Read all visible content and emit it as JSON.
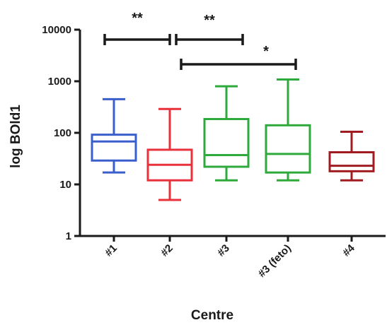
{
  "chart_data": {
    "type": "box",
    "xlabel": "Centre",
    "ylabel": "log BOld1",
    "yscale": "log",
    "ylim": [
      1,
      10000
    ],
    "yticks": [
      {
        "value": 1,
        "label": "1"
      },
      {
        "value": 10,
        "label": "10"
      },
      {
        "value": 100,
        "label": "100"
      },
      {
        "value": 1000,
        "label": "1000"
      },
      {
        "value": 10000,
        "label": "10000"
      }
    ],
    "categories": [
      "#1",
      "#2",
      "#3",
      "#3 (feto)",
      "#4"
    ],
    "boxes": [
      {
        "category": "#1",
        "min": 17,
        "q1": 29,
        "median": 68,
        "q3": 92,
        "max": 450,
        "color": "#3a5fcd"
      },
      {
        "category": "#2",
        "min": 5,
        "q1": 12,
        "median": 24,
        "q3": 47,
        "max": 290,
        "color": "#e8313a"
      },
      {
        "category": "#3",
        "min": 12,
        "q1": 22,
        "median": 37,
        "q3": 185,
        "max": 800,
        "color": "#2eaa3c"
      },
      {
        "category": "#3 (feto)",
        "min": 12,
        "q1": 17,
        "median": 39,
        "q3": 140,
        "max": 1080,
        "color": "#2eaa3c"
      },
      {
        "category": "#4",
        "min": 12,
        "q1": 18,
        "median": 23,
        "q3": 42,
        "max": 105,
        "color": "#a01c20"
      }
    ],
    "significance": [
      {
        "from": 0,
        "to": 1,
        "label": "**"
      },
      {
        "from": 1,
        "to": 2,
        "label": "**"
      },
      {
        "from": 1,
        "to": 3,
        "label": "*"
      }
    ],
    "grid": false,
    "legend": "none"
  }
}
